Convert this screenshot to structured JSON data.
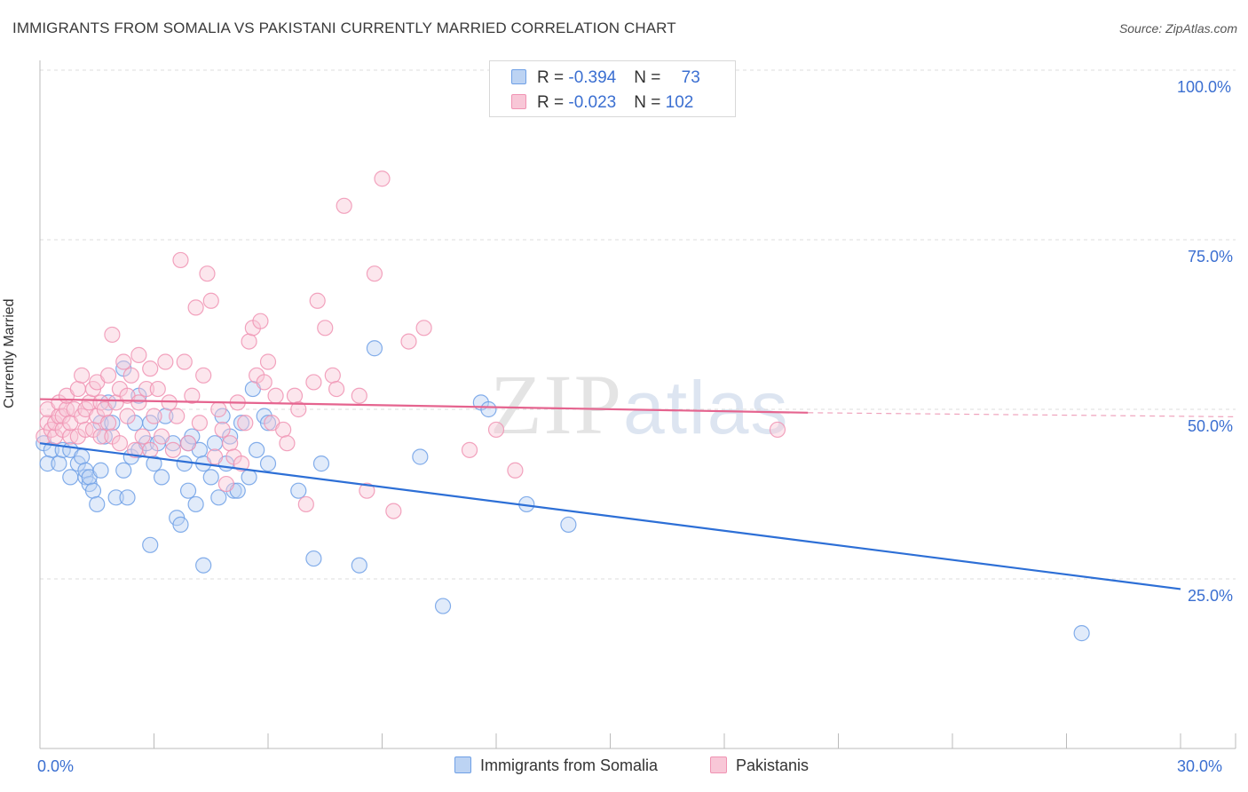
{
  "title": "IMMIGRANTS FROM SOMALIA VS PAKISTANI CURRENTLY MARRIED CORRELATION CHART",
  "source": "Source: ZipAtlas.com",
  "watermark": {
    "zip": "ZIP",
    "atlas": "atlas"
  },
  "legend": {
    "rows": [
      {
        "r_label": "R = ",
        "r_value": "-0.394",
        "n_label": "N = ",
        "n_value": "73"
      },
      {
        "r_label": "R = ",
        "r_value": "-0.023",
        "n_label": "N = ",
        "n_value": "102"
      }
    ]
  },
  "bottom_legend": [
    "Immigrants from Somalia",
    "Pakistanis"
  ],
  "axis": {
    "y_ticks": [
      "100.0%",
      "75.0%",
      "50.0%",
      "25.0%"
    ],
    "x_ticks": [
      "0.0%",
      "30.0%"
    ]
  },
  "chart_data": {
    "type": "scatter",
    "title": "IMMIGRANTS FROM SOMALIA VS PAKISTANI CURRENTLY MARRIED CORRELATION CHART",
    "xlabel": "",
    "ylabel": "Currently Married",
    "xlim": [
      0,
      30
    ],
    "ylim": [
      0,
      100
    ],
    "colors": {
      "somalia": "#6fa0e6",
      "somalia_line": "#2d6fd6",
      "pakistani": "#f093b3",
      "pakistani_line": "#e5648f"
    },
    "series": [
      {
        "name": "Immigrants from Somalia",
        "r": -0.394,
        "n": 73,
        "trend": {
          "x": [
            0,
            30
          ],
          "y": [
            45.0,
            23.5
          ]
        },
        "points": [
          [
            0.1,
            45
          ],
          [
            0.3,
            44
          ],
          [
            0.2,
            42
          ],
          [
            0.5,
            42
          ],
          [
            0.6,
            44
          ],
          [
            0.8,
            44
          ],
          [
            0.8,
            40
          ],
          [
            1.0,
            42
          ],
          [
            1.1,
            43
          ],
          [
            1.2,
            40
          ],
          [
            1.2,
            41
          ],
          [
            1.3,
            39
          ],
          [
            1.3,
            40
          ],
          [
            1.4,
            38
          ],
          [
            1.5,
            36
          ],
          [
            1.6,
            41
          ],
          [
            1.6,
            48
          ],
          [
            1.7,
            46
          ],
          [
            1.8,
            51
          ],
          [
            1.9,
            48
          ],
          [
            2.0,
            37
          ],
          [
            2.2,
            41
          ],
          [
            2.2,
            56
          ],
          [
            2.3,
            37
          ],
          [
            2.4,
            43
          ],
          [
            2.5,
            48
          ],
          [
            2.6,
            44
          ],
          [
            2.6,
            52
          ],
          [
            2.8,
            45
          ],
          [
            2.9,
            30
          ],
          [
            2.9,
            48
          ],
          [
            3.0,
            42
          ],
          [
            3.1,
            45
          ],
          [
            3.2,
            40
          ],
          [
            3.3,
            49
          ],
          [
            3.5,
            45
          ],
          [
            3.6,
            34
          ],
          [
            3.7,
            33
          ],
          [
            3.8,
            42
          ],
          [
            3.9,
            45
          ],
          [
            3.9,
            38
          ],
          [
            4.0,
            46
          ],
          [
            4.1,
            36
          ],
          [
            4.2,
            44
          ],
          [
            4.3,
            27
          ],
          [
            4.3,
            42
          ],
          [
            4.5,
            40
          ],
          [
            4.6,
            45
          ],
          [
            4.7,
            37
          ],
          [
            4.8,
            49
          ],
          [
            4.9,
            42
          ],
          [
            5.0,
            46
          ],
          [
            5.1,
            38
          ],
          [
            5.2,
            38
          ],
          [
            5.3,
            48
          ],
          [
            5.5,
            40
          ],
          [
            5.6,
            53
          ],
          [
            5.7,
            44
          ],
          [
            5.9,
            49
          ],
          [
            6.0,
            42
          ],
          [
            6.0,
            48
          ],
          [
            6.8,
            38
          ],
          [
            7.2,
            28
          ],
          [
            7.4,
            42
          ],
          [
            8.4,
            27
          ],
          [
            8.8,
            59
          ],
          [
            10.0,
            43
          ],
          [
            10.6,
            21
          ],
          [
            11.6,
            51
          ],
          [
            11.8,
            50
          ],
          [
            12.8,
            36
          ],
          [
            13.9,
            33
          ],
          [
            27.4,
            17
          ]
        ]
      },
      {
        "name": "Pakistanis",
        "r": -0.023,
        "n": 102,
        "trend": {
          "x": [
            0,
            20.2
          ],
          "y": [
            51.5,
            49.5
          ]
        },
        "points": [
          [
            0.1,
            46
          ],
          [
            0.2,
            48
          ],
          [
            0.2,
            50
          ],
          [
            0.3,
            47
          ],
          [
            0.4,
            46
          ],
          [
            0.4,
            48
          ],
          [
            0.5,
            49
          ],
          [
            0.5,
            51
          ],
          [
            0.6,
            47
          ],
          [
            0.6,
            49
          ],
          [
            0.7,
            50
          ],
          [
            0.7,
            52
          ],
          [
            0.8,
            46
          ],
          [
            0.8,
            48
          ],
          [
            0.9,
            50
          ],
          [
            1.0,
            46
          ],
          [
            1.0,
            53
          ],
          [
            1.1,
            49
          ],
          [
            1.1,
            55
          ],
          [
            1.2,
            47
          ],
          [
            1.2,
            50
          ],
          [
            1.3,
            51
          ],
          [
            1.4,
            47
          ],
          [
            1.4,
            53
          ],
          [
            1.5,
            49
          ],
          [
            1.5,
            54
          ],
          [
            1.6,
            51
          ],
          [
            1.6,
            46
          ],
          [
            1.7,
            50
          ],
          [
            1.8,
            48
          ],
          [
            1.8,
            55
          ],
          [
            1.9,
            46
          ],
          [
            1.9,
            61
          ],
          [
            2.0,
            51
          ],
          [
            2.1,
            53
          ],
          [
            2.1,
            45
          ],
          [
            2.2,
            57
          ],
          [
            2.3,
            49
          ],
          [
            2.3,
            52
          ],
          [
            2.4,
            55
          ],
          [
            2.5,
            44
          ],
          [
            2.6,
            51
          ],
          [
            2.6,
            58
          ],
          [
            2.7,
            46
          ],
          [
            2.8,
            53
          ],
          [
            2.9,
            56
          ],
          [
            2.9,
            44
          ],
          [
            3.0,
            49
          ],
          [
            3.1,
            53
          ],
          [
            3.2,
            46
          ],
          [
            3.3,
            57
          ],
          [
            3.4,
            51
          ],
          [
            3.5,
            44
          ],
          [
            3.6,
            49
          ],
          [
            3.7,
            72
          ],
          [
            3.8,
            57
          ],
          [
            3.9,
            45
          ],
          [
            4.0,
            52
          ],
          [
            4.1,
            65
          ],
          [
            4.2,
            48
          ],
          [
            4.3,
            55
          ],
          [
            4.4,
            70
          ],
          [
            4.5,
            66
          ],
          [
            4.6,
            43
          ],
          [
            4.7,
            50
          ],
          [
            4.8,
            47
          ],
          [
            4.9,
            39
          ],
          [
            5.0,
            45
          ],
          [
            5.1,
            43
          ],
          [
            5.2,
            51
          ],
          [
            5.3,
            42
          ],
          [
            5.4,
            48
          ],
          [
            5.5,
            60
          ],
          [
            5.6,
            62
          ],
          [
            5.7,
            55
          ],
          [
            5.8,
            63
          ],
          [
            5.9,
            54
          ],
          [
            6.0,
            57
          ],
          [
            6.1,
            48
          ],
          [
            6.2,
            52
          ],
          [
            6.4,
            47
          ],
          [
            6.5,
            45
          ],
          [
            6.7,
            52
          ],
          [
            6.8,
            50
          ],
          [
            7.0,
            36
          ],
          [
            7.2,
            54
          ],
          [
            7.3,
            66
          ],
          [
            7.5,
            62
          ],
          [
            7.7,
            55
          ],
          [
            7.8,
            53
          ],
          [
            8.0,
            80
          ],
          [
            8.4,
            52
          ],
          [
            8.6,
            38
          ],
          [
            8.8,
            70
          ],
          [
            9.0,
            84
          ],
          [
            9.3,
            35
          ],
          [
            9.7,
            60
          ],
          [
            10.1,
            62
          ],
          [
            11.3,
            44
          ],
          [
            12.0,
            47
          ],
          [
            12.5,
            41
          ],
          [
            19.4,
            47
          ]
        ]
      }
    ]
  }
}
